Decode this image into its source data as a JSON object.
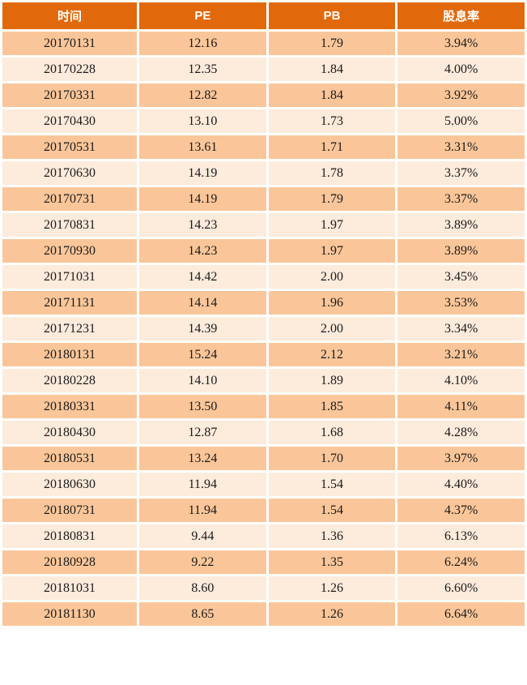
{
  "colors": {
    "header_bg": "#E2690B",
    "header_text": "#FFFFFF",
    "row_odd_bg": "#FAC699",
    "row_even_bg": "#FDEBDC",
    "cell_text": "#1A1A1A",
    "gridline": "#FFFFFF"
  },
  "chart_data": {
    "type": "table",
    "columns": [
      "时间",
      "PE",
      "PB",
      "股息率"
    ],
    "rows": [
      [
        "20170131",
        "12.16",
        "1.79",
        "3.94%"
      ],
      [
        "20170228",
        "12.35",
        "1.84",
        "4.00%"
      ],
      [
        "20170331",
        "12.82",
        "1.84",
        "3.92%"
      ],
      [
        "20170430",
        "13.10",
        "1.73",
        "5.00%"
      ],
      [
        "20170531",
        "13.61",
        "1.71",
        "3.31%"
      ],
      [
        "20170630",
        "14.19",
        "1.78",
        "3.37%"
      ],
      [
        "20170731",
        "14.19",
        "1.79",
        "3.37%"
      ],
      [
        "20170831",
        "14.23",
        "1.97",
        "3.89%"
      ],
      [
        "20170930",
        "14.23",
        "1.97",
        "3.89%"
      ],
      [
        "20171031",
        "14.42",
        "2.00",
        "3.45%"
      ],
      [
        "20171131",
        "14.14",
        "1.96",
        "3.53%"
      ],
      [
        "20171231",
        "14.39",
        "2.00",
        "3.34%"
      ],
      [
        "20180131",
        "15.24",
        "2.12",
        "3.21%"
      ],
      [
        "20180228",
        "14.10",
        "1.89",
        "4.10%"
      ],
      [
        "20180331",
        "13.50",
        "1.85",
        "4.11%"
      ],
      [
        "20180430",
        "12.87",
        "1.68",
        "4.28%"
      ],
      [
        "20180531",
        "13.24",
        "1.70",
        "3.97%"
      ],
      [
        "20180630",
        "11.94",
        "1.54",
        "4.40%"
      ],
      [
        "20180731",
        "11.94",
        "1.54",
        "4.37%"
      ],
      [
        "20180831",
        "9.44",
        "1.36",
        "6.13%"
      ],
      [
        "20180928",
        "9.22",
        "1.35",
        "6.24%"
      ],
      [
        "20181031",
        "8.60",
        "1.26",
        "6.60%"
      ],
      [
        "20181130",
        "8.65",
        "1.26",
        "6.64%"
      ]
    ]
  }
}
